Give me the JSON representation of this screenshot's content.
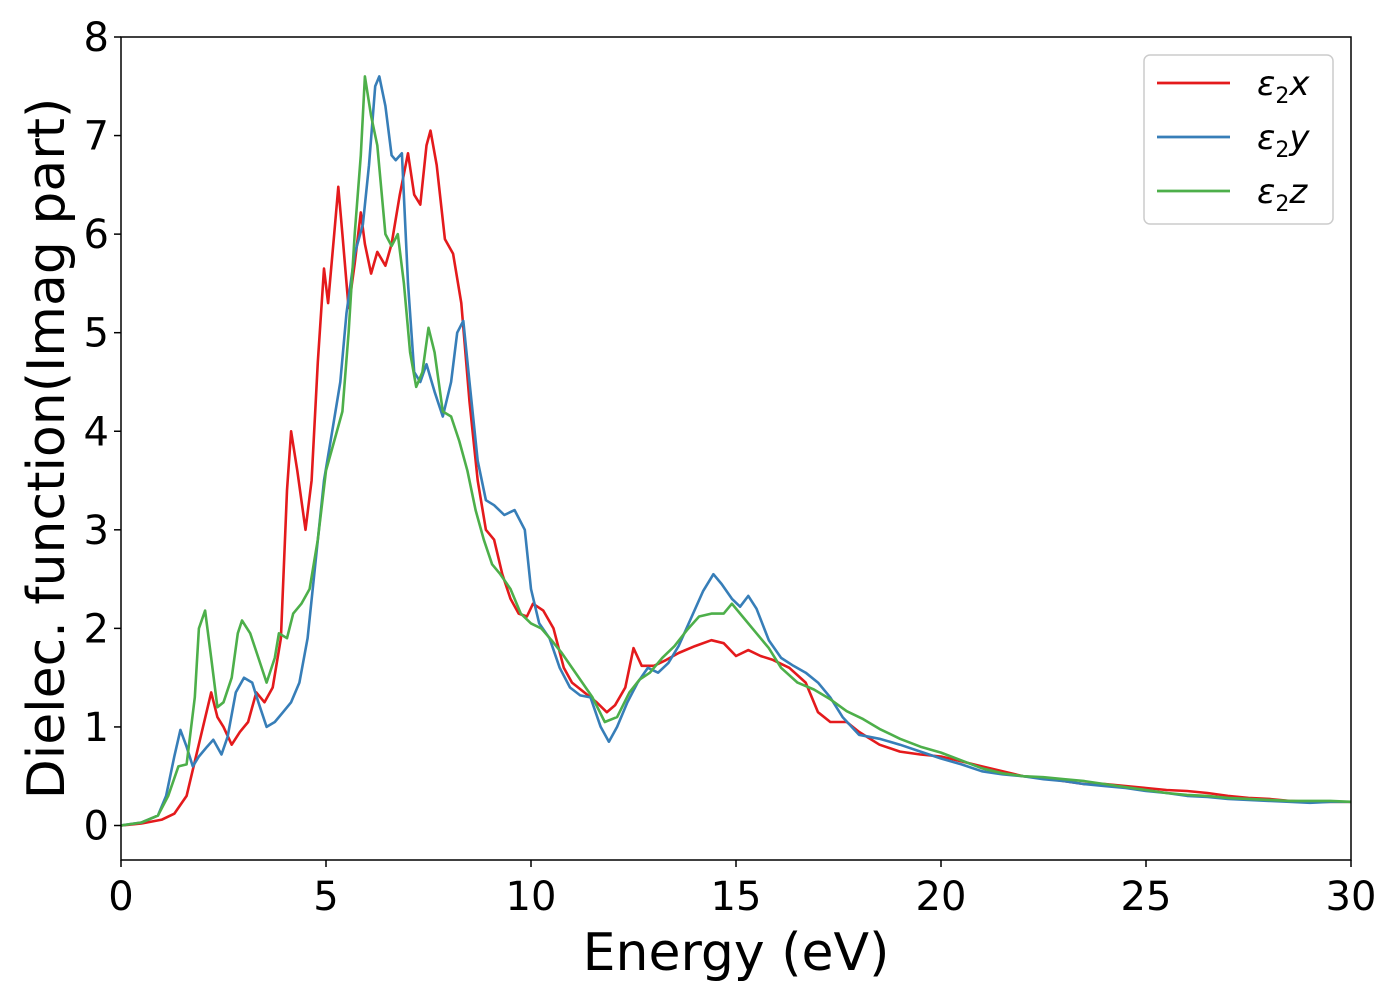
{
  "chart_data": {
    "type": "line",
    "xlabel": "Energy (eV)",
    "ylabel": "Dielec. function(Imag part)",
    "xlim": [
      0,
      30
    ],
    "ylim": [
      -0.35,
      8.0
    ],
    "xticks": [
      0,
      5,
      10,
      15,
      20,
      25,
      30
    ],
    "yticks": [
      0,
      1,
      2,
      3,
      4,
      5,
      6,
      7,
      8
    ],
    "grid": false,
    "legend_position": "top-right",
    "series": [
      {
        "name": "ε2x",
        "legend_main": "ε",
        "legend_sub": "2",
        "legend_tail": "x",
        "color": "#e41a1c",
        "points": [
          [
            0,
            0
          ],
          [
            0.5,
            0.02
          ],
          [
            1.0,
            0.06
          ],
          [
            1.3,
            0.12
          ],
          [
            1.6,
            0.3
          ],
          [
            1.8,
            0.65
          ],
          [
            2.0,
            1.0
          ],
          [
            2.2,
            1.35
          ],
          [
            2.35,
            1.1
          ],
          [
            2.5,
            1.0
          ],
          [
            2.7,
            0.82
          ],
          [
            2.9,
            0.95
          ],
          [
            3.1,
            1.05
          ],
          [
            3.3,
            1.35
          ],
          [
            3.5,
            1.25
          ],
          [
            3.7,
            1.4
          ],
          [
            3.9,
            1.9
          ],
          [
            4.05,
            3.4
          ],
          [
            4.15,
            4.0
          ],
          [
            4.3,
            3.6
          ],
          [
            4.5,
            3.0
          ],
          [
            4.65,
            3.5
          ],
          [
            4.8,
            4.7
          ],
          [
            4.95,
            5.65
          ],
          [
            5.05,
            5.3
          ],
          [
            5.2,
            6.0
          ],
          [
            5.3,
            6.48
          ],
          [
            5.4,
            6.0
          ],
          [
            5.55,
            5.25
          ],
          [
            5.7,
            5.7
          ],
          [
            5.85,
            6.22
          ],
          [
            5.95,
            5.9
          ],
          [
            6.1,
            5.6
          ],
          [
            6.25,
            5.82
          ],
          [
            6.45,
            5.68
          ],
          [
            6.6,
            5.9
          ],
          [
            6.8,
            6.4
          ],
          [
            7.0,
            6.82
          ],
          [
            7.15,
            6.4
          ],
          [
            7.3,
            6.3
          ],
          [
            7.45,
            6.9
          ],
          [
            7.55,
            7.05
          ],
          [
            7.7,
            6.7
          ],
          [
            7.9,
            5.95
          ],
          [
            8.1,
            5.8
          ],
          [
            8.3,
            5.3
          ],
          [
            8.5,
            4.3
          ],
          [
            8.7,
            3.5
          ],
          [
            8.9,
            3.0
          ],
          [
            9.1,
            2.9
          ],
          [
            9.3,
            2.55
          ],
          [
            9.5,
            2.3
          ],
          [
            9.7,
            2.15
          ],
          [
            9.9,
            2.12
          ],
          [
            10.05,
            2.25
          ],
          [
            10.3,
            2.18
          ],
          [
            10.55,
            2.0
          ],
          [
            10.8,
            1.6
          ],
          [
            11.0,
            1.45
          ],
          [
            11.3,
            1.35
          ],
          [
            11.6,
            1.25
          ],
          [
            11.85,
            1.15
          ],
          [
            12.05,
            1.22
          ],
          [
            12.3,
            1.4
          ],
          [
            12.5,
            1.8
          ],
          [
            12.7,
            1.62
          ],
          [
            13.0,
            1.62
          ],
          [
            13.3,
            1.68
          ],
          [
            13.6,
            1.75
          ],
          [
            14.0,
            1.82
          ],
          [
            14.4,
            1.88
          ],
          [
            14.7,
            1.85
          ],
          [
            15.0,
            1.72
          ],
          [
            15.3,
            1.78
          ],
          [
            15.6,
            1.72
          ],
          [
            15.9,
            1.68
          ],
          [
            16.3,
            1.6
          ],
          [
            16.7,
            1.45
          ],
          [
            17.0,
            1.15
          ],
          [
            17.3,
            1.05
          ],
          [
            17.7,
            1.05
          ],
          [
            18.0,
            0.95
          ],
          [
            18.5,
            0.82
          ],
          [
            19.0,
            0.75
          ],
          [
            19.5,
            0.72
          ],
          [
            20.0,
            0.7
          ],
          [
            20.5,
            0.65
          ],
          [
            21.0,
            0.6
          ],
          [
            21.5,
            0.55
          ],
          [
            22.0,
            0.5
          ],
          [
            22.5,
            0.48
          ],
          [
            23.0,
            0.45
          ],
          [
            23.5,
            0.42
          ],
          [
            24.0,
            0.42
          ],
          [
            24.5,
            0.4
          ],
          [
            25.0,
            0.38
          ],
          [
            25.5,
            0.36
          ],
          [
            26.0,
            0.35
          ],
          [
            26.5,
            0.33
          ],
          [
            27.0,
            0.3
          ],
          [
            27.5,
            0.28
          ],
          [
            28.0,
            0.27
          ],
          [
            28.5,
            0.25
          ],
          [
            29.0,
            0.24
          ],
          [
            29.5,
            0.24
          ],
          [
            30.0,
            0.24
          ]
        ]
      },
      {
        "name": "ε2y",
        "legend_main": "ε",
        "legend_sub": "2",
        "legend_tail": "y",
        "color": "#377eb8",
        "points": [
          [
            0,
            0
          ],
          [
            0.5,
            0.03
          ],
          [
            0.9,
            0.1
          ],
          [
            1.1,
            0.3
          ],
          [
            1.3,
            0.7
          ],
          [
            1.45,
            0.97
          ],
          [
            1.6,
            0.8
          ],
          [
            1.75,
            0.6
          ],
          [
            1.9,
            0.7
          ],
          [
            2.1,
            0.8
          ],
          [
            2.25,
            0.87
          ],
          [
            2.45,
            0.72
          ],
          [
            2.6,
            0.9
          ],
          [
            2.8,
            1.35
          ],
          [
            3.0,
            1.5
          ],
          [
            3.2,
            1.45
          ],
          [
            3.35,
            1.25
          ],
          [
            3.55,
            1.0
          ],
          [
            3.75,
            1.05
          ],
          [
            3.95,
            1.15
          ],
          [
            4.15,
            1.25
          ],
          [
            4.35,
            1.45
          ],
          [
            4.55,
            1.9
          ],
          [
            4.75,
            2.7
          ],
          [
            4.95,
            3.5
          ],
          [
            5.15,
            4.0
          ],
          [
            5.35,
            4.5
          ],
          [
            5.5,
            5.2
          ],
          [
            5.7,
            5.8
          ],
          [
            5.9,
            6.1
          ],
          [
            6.05,
            6.7
          ],
          [
            6.2,
            7.5
          ],
          [
            6.3,
            7.6
          ],
          [
            6.45,
            7.3
          ],
          [
            6.6,
            6.8
          ],
          [
            6.7,
            6.75
          ],
          [
            6.85,
            6.82
          ],
          [
            7.0,
            5.5
          ],
          [
            7.15,
            4.6
          ],
          [
            7.3,
            4.5
          ],
          [
            7.45,
            4.68
          ],
          [
            7.65,
            4.4
          ],
          [
            7.85,
            4.15
          ],
          [
            8.05,
            4.5
          ],
          [
            8.2,
            5.0
          ],
          [
            8.35,
            5.12
          ],
          [
            8.5,
            4.5
          ],
          [
            8.7,
            3.7
          ],
          [
            8.9,
            3.3
          ],
          [
            9.1,
            3.25
          ],
          [
            9.35,
            3.15
          ],
          [
            9.6,
            3.2
          ],
          [
            9.85,
            3.0
          ],
          [
            10.0,
            2.4
          ],
          [
            10.2,
            2.05
          ],
          [
            10.45,
            1.9
          ],
          [
            10.7,
            1.6
          ],
          [
            10.95,
            1.4
          ],
          [
            11.2,
            1.32
          ],
          [
            11.45,
            1.3
          ],
          [
            11.7,
            1.0
          ],
          [
            11.9,
            0.85
          ],
          [
            12.1,
            1.0
          ],
          [
            12.35,
            1.25
          ],
          [
            12.6,
            1.45
          ],
          [
            12.85,
            1.6
          ],
          [
            13.1,
            1.55
          ],
          [
            13.35,
            1.65
          ],
          [
            13.6,
            1.82
          ],
          [
            13.9,
            2.1
          ],
          [
            14.2,
            2.38
          ],
          [
            14.45,
            2.55
          ],
          [
            14.65,
            2.45
          ],
          [
            14.9,
            2.3
          ],
          [
            15.1,
            2.22
          ],
          [
            15.3,
            2.33
          ],
          [
            15.5,
            2.2
          ],
          [
            15.8,
            1.88
          ],
          [
            16.1,
            1.7
          ],
          [
            16.4,
            1.62
          ],
          [
            16.7,
            1.55
          ],
          [
            17.0,
            1.45
          ],
          [
            17.3,
            1.3
          ],
          [
            17.6,
            1.1
          ],
          [
            18.0,
            0.92
          ],
          [
            18.5,
            0.88
          ],
          [
            19.0,
            0.82
          ],
          [
            19.5,
            0.75
          ],
          [
            20.0,
            0.68
          ],
          [
            20.5,
            0.62
          ],
          [
            21.0,
            0.55
          ],
          [
            21.5,
            0.52
          ],
          [
            22.0,
            0.5
          ],
          [
            22.5,
            0.47
          ],
          [
            23.0,
            0.45
          ],
          [
            23.5,
            0.42
          ],
          [
            24.0,
            0.4
          ],
          [
            24.5,
            0.38
          ],
          [
            25.0,
            0.35
          ],
          [
            25.5,
            0.33
          ],
          [
            26.0,
            0.3
          ],
          [
            26.5,
            0.29
          ],
          [
            27.0,
            0.27
          ],
          [
            27.5,
            0.26
          ],
          [
            28.0,
            0.25
          ],
          [
            28.5,
            0.24
          ],
          [
            29.0,
            0.23
          ],
          [
            29.5,
            0.24
          ],
          [
            30.0,
            0.24
          ]
        ]
      },
      {
        "name": "ε2z",
        "legend_main": "ε",
        "legend_sub": "2",
        "legend_tail": "z",
        "color": "#4daf4a",
        "points": [
          [
            0,
            0
          ],
          [
            0.5,
            0.03
          ],
          [
            0.9,
            0.1
          ],
          [
            1.15,
            0.3
          ],
          [
            1.4,
            0.6
          ],
          [
            1.6,
            0.62
          ],
          [
            1.8,
            1.3
          ],
          [
            1.9,
            2.0
          ],
          [
            2.05,
            2.18
          ],
          [
            2.2,
            1.7
          ],
          [
            2.35,
            1.2
          ],
          [
            2.5,
            1.25
          ],
          [
            2.7,
            1.5
          ],
          [
            2.85,
            1.95
          ],
          [
            2.95,
            2.08
          ],
          [
            3.15,
            1.95
          ],
          [
            3.35,
            1.7
          ],
          [
            3.55,
            1.45
          ],
          [
            3.75,
            1.7
          ],
          [
            3.85,
            1.95
          ],
          [
            4.05,
            1.9
          ],
          [
            4.2,
            2.15
          ],
          [
            4.4,
            2.25
          ],
          [
            4.6,
            2.4
          ],
          [
            4.8,
            2.9
          ],
          [
            5.0,
            3.6
          ],
          [
            5.2,
            3.9
          ],
          [
            5.4,
            4.2
          ],
          [
            5.55,
            5.0
          ],
          [
            5.7,
            6.0
          ],
          [
            5.85,
            6.8
          ],
          [
            5.95,
            7.6
          ],
          [
            6.1,
            7.2
          ],
          [
            6.25,
            6.9
          ],
          [
            6.45,
            6.0
          ],
          [
            6.6,
            5.88
          ],
          [
            6.75,
            6.0
          ],
          [
            6.9,
            5.5
          ],
          [
            7.05,
            4.8
          ],
          [
            7.2,
            4.45
          ],
          [
            7.35,
            4.6
          ],
          [
            7.5,
            5.05
          ],
          [
            7.65,
            4.8
          ],
          [
            7.85,
            4.2
          ],
          [
            8.05,
            4.15
          ],
          [
            8.25,
            3.9
          ],
          [
            8.45,
            3.6
          ],
          [
            8.65,
            3.2
          ],
          [
            8.85,
            2.9
          ],
          [
            9.05,
            2.65
          ],
          [
            9.25,
            2.55
          ],
          [
            9.5,
            2.4
          ],
          [
            9.75,
            2.15
          ],
          [
            10.0,
            2.05
          ],
          [
            10.25,
            2.0
          ],
          [
            10.5,
            1.88
          ],
          [
            10.75,
            1.75
          ],
          [
            11.0,
            1.6
          ],
          [
            11.25,
            1.45
          ],
          [
            11.5,
            1.3
          ],
          [
            11.8,
            1.05
          ],
          [
            12.1,
            1.1
          ],
          [
            12.4,
            1.35
          ],
          [
            12.65,
            1.48
          ],
          [
            12.9,
            1.55
          ],
          [
            13.2,
            1.7
          ],
          [
            13.5,
            1.82
          ],
          [
            13.8,
            1.98
          ],
          [
            14.1,
            2.12
          ],
          [
            14.4,
            2.15
          ],
          [
            14.7,
            2.15
          ],
          [
            14.9,
            2.25
          ],
          [
            15.2,
            2.1
          ],
          [
            15.5,
            1.95
          ],
          [
            15.8,
            1.8
          ],
          [
            16.1,
            1.6
          ],
          [
            16.5,
            1.45
          ],
          [
            16.9,
            1.38
          ],
          [
            17.3,
            1.28
          ],
          [
            17.7,
            1.16
          ],
          [
            18.1,
            1.08
          ],
          [
            18.5,
            0.98
          ],
          [
            19.0,
            0.88
          ],
          [
            19.5,
            0.8
          ],
          [
            20.0,
            0.74
          ],
          [
            20.5,
            0.66
          ],
          [
            21.0,
            0.58
          ],
          [
            21.5,
            0.53
          ],
          [
            22.0,
            0.5
          ],
          [
            22.5,
            0.49
          ],
          [
            23.0,
            0.47
          ],
          [
            23.5,
            0.45
          ],
          [
            24.0,
            0.42
          ],
          [
            24.5,
            0.39
          ],
          [
            25.0,
            0.36
          ],
          [
            25.5,
            0.33
          ],
          [
            26.0,
            0.31
          ],
          [
            26.5,
            0.3
          ],
          [
            27.0,
            0.28
          ],
          [
            27.5,
            0.27
          ],
          [
            28.0,
            0.26
          ],
          [
            28.5,
            0.25
          ],
          [
            29.0,
            0.25
          ],
          [
            29.5,
            0.25
          ],
          [
            30.0,
            0.24
          ]
        ]
      }
    ]
  }
}
